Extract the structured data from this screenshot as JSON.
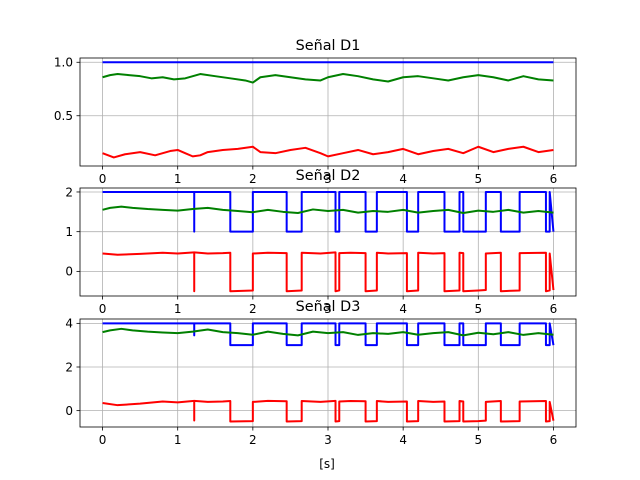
{
  "chart_data": [
    {
      "type": "line",
      "title": "Señal D1",
      "xlabel": "",
      "ylabel": "",
      "xlim": [
        -0.3,
        6.3
      ],
      "ylim": [
        0.03,
        1.04
      ],
      "xticks": [
        0,
        1,
        2,
        3,
        4,
        5,
        6
      ],
      "yticks": [
        0.5,
        1.0
      ],
      "ytick_labels": [
        "0.5",
        "1.0"
      ],
      "grid": true,
      "series": [
        {
          "color": "#0000ff",
          "x": [
            0,
            6
          ],
          "y": [
            1.0,
            1.0
          ]
        },
        {
          "color": "#008000",
          "x": [
            0,
            0.1,
            0.2,
            0.35,
            0.5,
            0.65,
            0.8,
            0.95,
            1.1,
            1.2,
            1.3,
            1.5,
            1.7,
            1.9,
            2.0,
            2.1,
            2.3,
            2.5,
            2.7,
            2.9,
            3.0,
            3.2,
            3.4,
            3.6,
            3.8,
            4.0,
            4.2,
            4.4,
            4.6,
            4.8,
            5.0,
            5.2,
            5.4,
            5.6,
            5.8,
            6.0
          ],
          "y": [
            0.86,
            0.88,
            0.89,
            0.88,
            0.87,
            0.85,
            0.86,
            0.84,
            0.85,
            0.87,
            0.89,
            0.87,
            0.85,
            0.83,
            0.81,
            0.86,
            0.88,
            0.86,
            0.84,
            0.83,
            0.86,
            0.89,
            0.87,
            0.84,
            0.82,
            0.86,
            0.87,
            0.85,
            0.83,
            0.86,
            0.88,
            0.86,
            0.83,
            0.87,
            0.84,
            0.83
          ]
        },
        {
          "color": "#ff0000",
          "x": [
            0,
            0.15,
            0.3,
            0.5,
            0.7,
            0.9,
            1.0,
            1.1,
            1.2,
            1.3,
            1.4,
            1.6,
            1.8,
            2.0,
            2.1,
            2.3,
            2.5,
            2.7,
            2.9,
            3.0,
            3.2,
            3.4,
            3.6,
            3.8,
            4.0,
            4.2,
            4.4,
            4.6,
            4.8,
            5.0,
            5.2,
            5.4,
            5.6,
            5.8,
            6.0
          ],
          "y": [
            0.15,
            0.11,
            0.14,
            0.16,
            0.13,
            0.17,
            0.18,
            0.15,
            0.12,
            0.13,
            0.16,
            0.18,
            0.19,
            0.21,
            0.16,
            0.15,
            0.18,
            0.2,
            0.15,
            0.12,
            0.15,
            0.18,
            0.14,
            0.16,
            0.19,
            0.14,
            0.17,
            0.19,
            0.15,
            0.21,
            0.16,
            0.19,
            0.21,
            0.16,
            0.18
          ]
        }
      ]
    },
    {
      "type": "line",
      "title": "Señal D2",
      "xlabel": "",
      "ylabel": "",
      "xlim": [
        -0.3,
        6.3
      ],
      "ylim": [
        -0.62,
        2.1
      ],
      "xticks": [
        0,
        1,
        2,
        3,
        4,
        5,
        6
      ],
      "yticks": [
        0,
        1,
        2
      ],
      "ytick_labels": [
        "0",
        "1",
        "2"
      ],
      "grid": true,
      "series": [
        {
          "color": "#0000ff",
          "x": [
            0,
            1.22,
            1.22,
            1.22,
            1.22,
            1.7,
            1.7,
            2.0,
            2.0,
            2.45,
            2.45,
            2.65,
            2.65,
            3.1,
            3.1,
            3.15,
            3.15,
            3.5,
            3.5,
            3.65,
            3.65,
            4.05,
            4.05,
            4.2,
            4.2,
            4.55,
            4.55,
            4.75,
            4.75,
            4.8,
            4.8,
            5.1,
            5.1,
            5.3,
            5.3,
            5.55,
            5.55,
            5.9,
            5.9,
            5.95,
            5.95,
            6.0
          ],
          "y": [
            2,
            2,
            1,
            2,
            2,
            2,
            1,
            1,
            2,
            2,
            1,
            1,
            2,
            2,
            1,
            1,
            2,
            2,
            1,
            1,
            2,
            2,
            1,
            1,
            2,
            2,
            1,
            1,
            2,
            2,
            1,
            1,
            2,
            2,
            1,
            1,
            2,
            2,
            1,
            1,
            2,
            1
          ]
        },
        {
          "color": "#008000",
          "x": [
            0,
            0.1,
            0.25,
            0.4,
            0.6,
            0.8,
            1.0,
            1.2,
            1.4,
            1.6,
            1.8,
            2.0,
            2.2,
            2.4,
            2.6,
            2.8,
            3.0,
            3.2,
            3.4,
            3.6,
            3.8,
            4.0,
            4.2,
            4.4,
            4.6,
            4.8,
            5.0,
            5.2,
            5.4,
            5.6,
            5.8,
            6.0
          ],
          "y": [
            1.55,
            1.6,
            1.63,
            1.6,
            1.57,
            1.55,
            1.53,
            1.57,
            1.6,
            1.55,
            1.52,
            1.49,
            1.55,
            1.5,
            1.47,
            1.56,
            1.52,
            1.55,
            1.48,
            1.52,
            1.5,
            1.55,
            1.48,
            1.52,
            1.55,
            1.47,
            1.53,
            1.5,
            1.55,
            1.48,
            1.52,
            1.48
          ]
        },
        {
          "color": "#ff0000",
          "x": [
            0,
            0.2,
            0.5,
            0.8,
            1.0,
            1.22,
            1.22,
            1.22,
            1.4,
            1.6,
            1.7,
            1.7,
            2.0,
            2.0,
            2.2,
            2.45,
            2.45,
            2.65,
            2.65,
            2.9,
            3.1,
            3.1,
            3.15,
            3.15,
            3.3,
            3.5,
            3.5,
            3.65,
            3.65,
            3.8,
            4.05,
            4.05,
            4.2,
            4.2,
            4.4,
            4.55,
            4.55,
            4.75,
            4.75,
            4.8,
            4.8,
            5.0,
            5.1,
            5.1,
            5.3,
            5.3,
            5.55,
            5.55,
            5.9,
            5.9,
            5.95,
            5.95,
            6.0
          ],
          "y": [
            0.45,
            0.42,
            0.44,
            0.47,
            0.45,
            0.48,
            -0.5,
            0.48,
            0.45,
            0.46,
            0.47,
            -0.5,
            -0.48,
            0.45,
            0.47,
            0.46,
            -0.5,
            -0.48,
            0.47,
            0.45,
            0.48,
            -0.5,
            -0.48,
            0.46,
            0.47,
            0.46,
            -0.5,
            -0.48,
            0.47,
            0.45,
            0.46,
            -0.5,
            -0.48,
            0.47,
            0.45,
            0.46,
            -0.5,
            -0.48,
            0.47,
            0.46,
            -0.5,
            -0.48,
            -0.47,
            0.45,
            0.47,
            -0.5,
            -0.48,
            0.46,
            0.47,
            -0.5,
            -0.48,
            0.45,
            -0.47
          ]
        }
      ]
    },
    {
      "type": "line",
      "title": "Señal D3",
      "xlabel": "[s]",
      "ylabel": "",
      "xlim": [
        -0.3,
        6.3
      ],
      "ylim": [
        -0.75,
        4.2
      ],
      "xticks": [
        0,
        1,
        2,
        3,
        4,
        5,
        6
      ],
      "yticks": [
        0,
        2,
        4
      ],
      "ytick_labels": [
        "0",
        "2",
        "4"
      ],
      "grid": true,
      "series": [
        {
          "color": "#0000ff",
          "x": [
            0,
            1.22,
            1.22,
            1.22,
            1.7,
            1.7,
            2.0,
            2.0,
            2.45,
            2.45,
            2.65,
            2.65,
            3.1,
            3.1,
            3.15,
            3.15,
            3.5,
            3.5,
            3.65,
            3.65,
            4.05,
            4.05,
            4.2,
            4.2,
            4.55,
            4.55,
            4.75,
            4.75,
            4.8,
            4.8,
            5.1,
            5.1,
            5.3,
            5.3,
            5.55,
            5.55,
            5.9,
            5.9,
            5.95,
            5.95,
            6.0
          ],
          "y": [
            4,
            4,
            3.45,
            4,
            4,
            3,
            3,
            4,
            4,
            3,
            3,
            4,
            4,
            3,
            3,
            4,
            4,
            3,
            3,
            4,
            4,
            3,
            3,
            4,
            4,
            3,
            3,
            4,
            4,
            3,
            3,
            4,
            4,
            3,
            3,
            4,
            4,
            3,
            3,
            4,
            3
          ]
        },
        {
          "color": "#008000",
          "x": [
            0,
            0.1,
            0.25,
            0.4,
            0.6,
            0.8,
            1.0,
            1.2,
            1.4,
            1.6,
            1.8,
            2.0,
            2.2,
            2.4,
            2.6,
            2.8,
            3.0,
            3.2,
            3.4,
            3.6,
            3.8,
            4.0,
            4.2,
            4.4,
            4.6,
            4.8,
            5.0,
            5.2,
            5.4,
            5.6,
            5.8,
            6.0
          ],
          "y": [
            3.6,
            3.68,
            3.75,
            3.68,
            3.62,
            3.58,
            3.55,
            3.62,
            3.72,
            3.6,
            3.55,
            3.48,
            3.62,
            3.52,
            3.45,
            3.62,
            3.55,
            3.6,
            3.47,
            3.55,
            3.52,
            3.6,
            3.48,
            3.55,
            3.6,
            3.45,
            3.57,
            3.5,
            3.6,
            3.47,
            3.55,
            3.48
          ]
        },
        {
          "color": "#ff0000",
          "x": [
            0,
            0.2,
            0.5,
            0.8,
            1.0,
            1.22,
            1.22,
            1.22,
            1.4,
            1.6,
            1.7,
            1.7,
            2.0,
            2.0,
            2.2,
            2.45,
            2.45,
            2.65,
            2.65,
            2.9,
            3.1,
            3.1,
            3.15,
            3.15,
            3.3,
            3.5,
            3.5,
            3.65,
            3.65,
            3.8,
            4.05,
            4.05,
            4.2,
            4.2,
            4.4,
            4.55,
            4.55,
            4.75,
            4.75,
            4.8,
            4.8,
            5.0,
            5.1,
            5.1,
            5.3,
            5.3,
            5.55,
            5.55,
            5.9,
            5.9,
            5.95,
            5.95,
            6.0
          ],
          "y": [
            0.35,
            0.25,
            0.32,
            0.42,
            0.38,
            0.45,
            -0.45,
            0.45,
            0.4,
            0.42,
            0.44,
            -0.5,
            -0.48,
            0.4,
            0.45,
            0.43,
            -0.5,
            -0.48,
            0.44,
            0.4,
            0.45,
            -0.5,
            -0.48,
            0.42,
            0.44,
            0.43,
            -0.5,
            -0.48,
            0.44,
            0.4,
            0.42,
            -0.5,
            -0.48,
            0.44,
            0.4,
            0.42,
            -0.5,
            -0.48,
            0.44,
            0.42,
            -0.5,
            -0.48,
            -0.46,
            0.4,
            0.44,
            -0.5,
            -0.48,
            0.42,
            0.44,
            -0.5,
            -0.48,
            0.4,
            -0.46
          ]
        }
      ]
    }
  ]
}
